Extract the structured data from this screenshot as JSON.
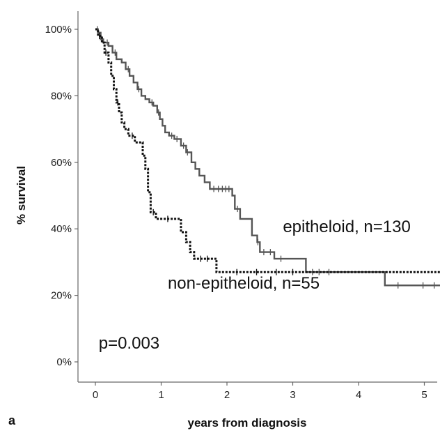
{
  "panel_label": "a",
  "chart_data": {
    "type": "line",
    "step": true,
    "xlabel": "years from diagnosis",
    "ylabel": "% survival",
    "xlim": [
      -0.2,
      5.3
    ],
    "ylim": [
      0,
      100
    ],
    "x_ticks": [
      0,
      1,
      2,
      3,
      4,
      5
    ],
    "x_tick_labels": [
      "0",
      "1",
      "2",
      "3",
      "4",
      "5"
    ],
    "y_ticks": [
      0,
      20,
      40,
      60,
      80,
      100
    ],
    "y_tick_labels": [
      "0%",
      "20%",
      "40%",
      "60%",
      "80%",
      "100%"
    ],
    "grid": false,
    "annotations": [
      {
        "text": "epitheloid, n=130",
        "x": 2.85,
        "y": 39
      },
      {
        "text": "non-epitheloid, n=55",
        "x": 1.1,
        "y": 22
      },
      {
        "text": "p=0.003",
        "x": 0.05,
        "y": 4
      }
    ],
    "series": [
      {
        "key": "epitheloid",
        "style": "solid",
        "color": "#555555",
        "points": [
          [
            0,
            100
          ],
          [
            0.04,
            99
          ],
          [
            0.08,
            97
          ],
          [
            0.12,
            96
          ],
          [
            0.2,
            95
          ],
          [
            0.26,
            93
          ],
          [
            0.32,
            91
          ],
          [
            0.4,
            90
          ],
          [
            0.46,
            88
          ],
          [
            0.52,
            86
          ],
          [
            0.58,
            84
          ],
          [
            0.64,
            82
          ],
          [
            0.7,
            80
          ],
          [
            0.76,
            79
          ],
          [
            0.82,
            78
          ],
          [
            0.88,
            77
          ],
          [
            0.94,
            75
          ],
          [
            0.98,
            73
          ],
          [
            1.02,
            71
          ],
          [
            1.06,
            69
          ],
          [
            1.12,
            68
          ],
          [
            1.2,
            67
          ],
          [
            1.3,
            65
          ],
          [
            1.38,
            63
          ],
          [
            1.46,
            60
          ],
          [
            1.52,
            58
          ],
          [
            1.58,
            56
          ],
          [
            1.66,
            54
          ],
          [
            1.74,
            52
          ],
          [
            2.08,
            50
          ],
          [
            2.12,
            46
          ],
          [
            2.2,
            43
          ],
          [
            2.38,
            38
          ],
          [
            2.46,
            36
          ],
          [
            2.5,
            33
          ],
          [
            2.72,
            31
          ],
          [
            3.2,
            27
          ],
          [
            4.4,
            23
          ],
          [
            5.25,
            23
          ]
        ],
        "censor_x": [
          0.03,
          0.1,
          0.18,
          0.3,
          0.5,
          0.66,
          0.86,
          0.96,
          1.16,
          1.24,
          1.34,
          1.4,
          1.8,
          1.87,
          1.93,
          1.98,
          2.03,
          2.16,
          2.47,
          2.56,
          2.66,
          2.82,
          3.3,
          3.4,
          3.55,
          4.6,
          4.98,
          5.15
        ]
      },
      {
        "key": "non-epitheloid",
        "style": "dotted",
        "color": "#111111",
        "points": [
          [
            0,
            100
          ],
          [
            0.04,
            98
          ],
          [
            0.1,
            96
          ],
          [
            0.14,
            93
          ],
          [
            0.2,
            90
          ],
          [
            0.24,
            86
          ],
          [
            0.28,
            82
          ],
          [
            0.32,
            78
          ],
          [
            0.36,
            75
          ],
          [
            0.4,
            72
          ],
          [
            0.44,
            70
          ],
          [
            0.5,
            68
          ],
          [
            0.6,
            66
          ],
          [
            0.72,
            62
          ],
          [
            0.76,
            58
          ],
          [
            0.8,
            51
          ],
          [
            0.84,
            45
          ],
          [
            0.92,
            43
          ],
          [
            1.3,
            39
          ],
          [
            1.38,
            36
          ],
          [
            1.44,
            33
          ],
          [
            1.5,
            31
          ],
          [
            1.84,
            27
          ],
          [
            5.25,
            27
          ]
        ],
        "censor_x": [
          0.06,
          0.16,
          0.34,
          0.56,
          0.88,
          1.1,
          1.6,
          1.7,
          2.15,
          2.45,
          2.75,
          3.0
        ]
      }
    ]
  }
}
